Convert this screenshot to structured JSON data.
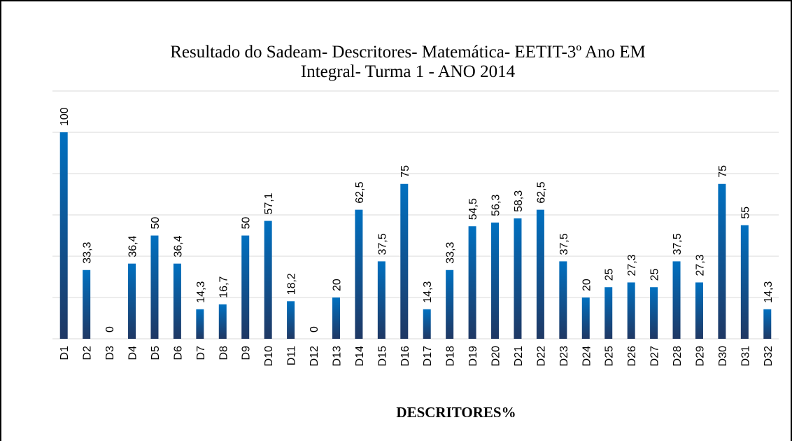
{
  "chart_data": {
    "type": "bar",
    "title": [
      "Resultado do Sadeam- Descritores- Matemática- EETIT-3º Ano EM",
      "Integral- Turma 1 - ANO 2014"
    ],
    "x_label": "DESCRITORES%",
    "categories": [
      "D1",
      "D2",
      "D3",
      "D4",
      "D5",
      "D6",
      "D7",
      "D8",
      "D9",
      "D10",
      "D11",
      "D12",
      "D13",
      "D14",
      "D15",
      "D16",
      "D17",
      "D18",
      "D19",
      "D20",
      "D21",
      "D22",
      "D23",
      "D24",
      "D25",
      "D26",
      "D27",
      "D28",
      "D29",
      "D30",
      "D31",
      "D32"
    ],
    "values": [
      100,
      33.3,
      0,
      36.4,
      50,
      36.4,
      14.3,
      16.7,
      50,
      57.1,
      18.2,
      0,
      20,
      62.5,
      37.5,
      75,
      14.3,
      33.3,
      54.5,
      56.3,
      58.3,
      62.5,
      37.5,
      20,
      25,
      27.3,
      25,
      37.5,
      27.3,
      75,
      55,
      14.3
    ],
    "value_labels": [
      "100",
      "33,3",
      "0",
      "36,4",
      "50",
      "36,4",
      "14,3",
      "16,7",
      "50",
      "57,1",
      "18,2",
      "0",
      "20",
      "62,5",
      "37,5",
      "75",
      "14,3",
      "33,3",
      "54,5",
      "56,3",
      "58,3",
      "62,5",
      "37,5",
      "20",
      "25",
      "27,3",
      "25",
      "37,5",
      "27,3",
      "75",
      "55",
      "14,3"
    ],
    "color": [
      "#0070c0",
      "#1f3864"
    ],
    "ylim": [
      0,
      120
    ],
    "yticks": [
      0,
      20,
      40,
      60,
      80,
      100,
      120
    ],
    "grid": true
  }
}
